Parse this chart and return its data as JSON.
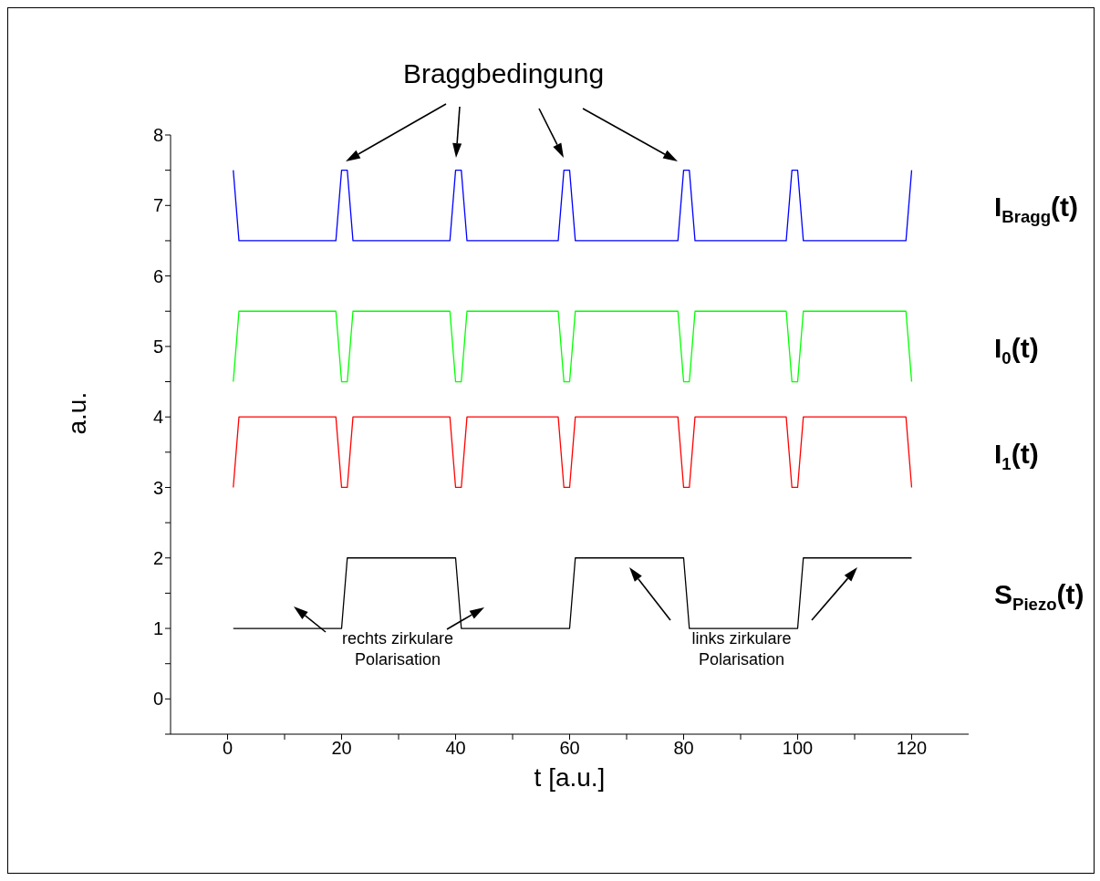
{
  "chart_data": {
    "type": "line",
    "xlabel": "t [a.u.]",
    "ylabel": "a.u.",
    "xlim": [
      -10,
      130
    ],
    "ylim": [
      -0.5,
      8
    ],
    "xticks": [
      0,
      {
        "value": 10,
        "label": null
      },
      20,
      {
        "value": 30,
        "label": null
      },
      40,
      {
        "value": 50,
        "label": null
      },
      60,
      {
        "value": 70,
        "label": null
      },
      80,
      {
        "value": 90,
        "label": null
      },
      100,
      {
        "value": 110,
        "label": null
      },
      120
    ],
    "yticks": [
      {
        "value": -0.5,
        "label": null
      },
      0,
      {
        "value": 0.5,
        "label": null
      },
      1,
      {
        "value": 1.5,
        "label": null
      },
      2,
      {
        "value": 2.5,
        "label": null
      },
      3,
      {
        "value": 3.5,
        "label": null
      },
      4,
      {
        "value": 4.5,
        "label": null
      },
      5,
      {
        "value": 5.5,
        "label": null
      },
      6,
      {
        "value": 6.5,
        "label": null
      },
      7,
      {
        "value": 7.5,
        "label": null
      },
      8
    ],
    "grid": false,
    "legend": false,
    "marker": "none",
    "line_style": "solid",
    "series": [
      {
        "name": "I$_{Bragg}$(t)",
        "color": "#0000ff",
        "x": [
          1,
          2,
          19,
          20,
          21,
          22,
          39,
          40,
          41,
          42,
          58,
          59,
          60,
          61,
          79,
          80,
          81,
          82,
          98,
          99,
          100,
          101,
          119,
          120
        ],
        "values": [
          7.5,
          6.5,
          6.5,
          7.5,
          7.5,
          6.5,
          6.5,
          7.5,
          7.5,
          6.5,
          6.5,
          7.5,
          7.5,
          6.5,
          6.5,
          7.5,
          7.5,
          6.5,
          6.5,
          7.5,
          7.5,
          6.5,
          6.5,
          7.5
        ]
      },
      {
        "name": "I$_{0}$(t)",
        "color": "#00ff00",
        "x": [
          1,
          2,
          19,
          20,
          21,
          22,
          39,
          40,
          41,
          42,
          58,
          59,
          60,
          61,
          79,
          80,
          81,
          82,
          98,
          99,
          100,
          101,
          119,
          120
        ],
        "values": [
          4.5,
          5.5,
          5.5,
          4.5,
          4.5,
          5.5,
          5.5,
          4.5,
          4.5,
          5.5,
          5.5,
          4.5,
          4.5,
          5.5,
          5.5,
          4.5,
          4.5,
          5.5,
          5.5,
          4.5,
          4.5,
          5.5,
          5.5,
          4.5
        ]
      },
      {
        "name": "I$_{1}$(t)",
        "color": "#ff0000",
        "x": [
          1,
          2,
          19,
          20,
          21,
          22,
          39,
          40,
          41,
          42,
          58,
          59,
          60,
          61,
          79,
          80,
          81,
          82,
          98,
          99,
          100,
          101,
          119,
          120
        ],
        "values": [
          3,
          4,
          4,
          3,
          3,
          4,
          4,
          3,
          3,
          4,
          4,
          3,
          3,
          4,
          4,
          3,
          3,
          4,
          4,
          3,
          3,
          4,
          4,
          3
        ]
      },
      {
        "name": "S$_{Piezo}$(t)",
        "color": "#000000",
        "x": [
          1,
          20,
          21,
          40,
          41,
          60,
          61,
          80,
          81,
          100,
          101,
          120
        ],
        "values": [
          1,
          1,
          2,
          2,
          1,
          1,
          2,
          2,
          1,
          1,
          2,
          2
        ]
      }
    ],
    "annotations": [
      "Braggbedingung",
      "rechts zirkulare\nPolarisation",
      "links zirkulare\nPolarisation"
    ]
  }
}
